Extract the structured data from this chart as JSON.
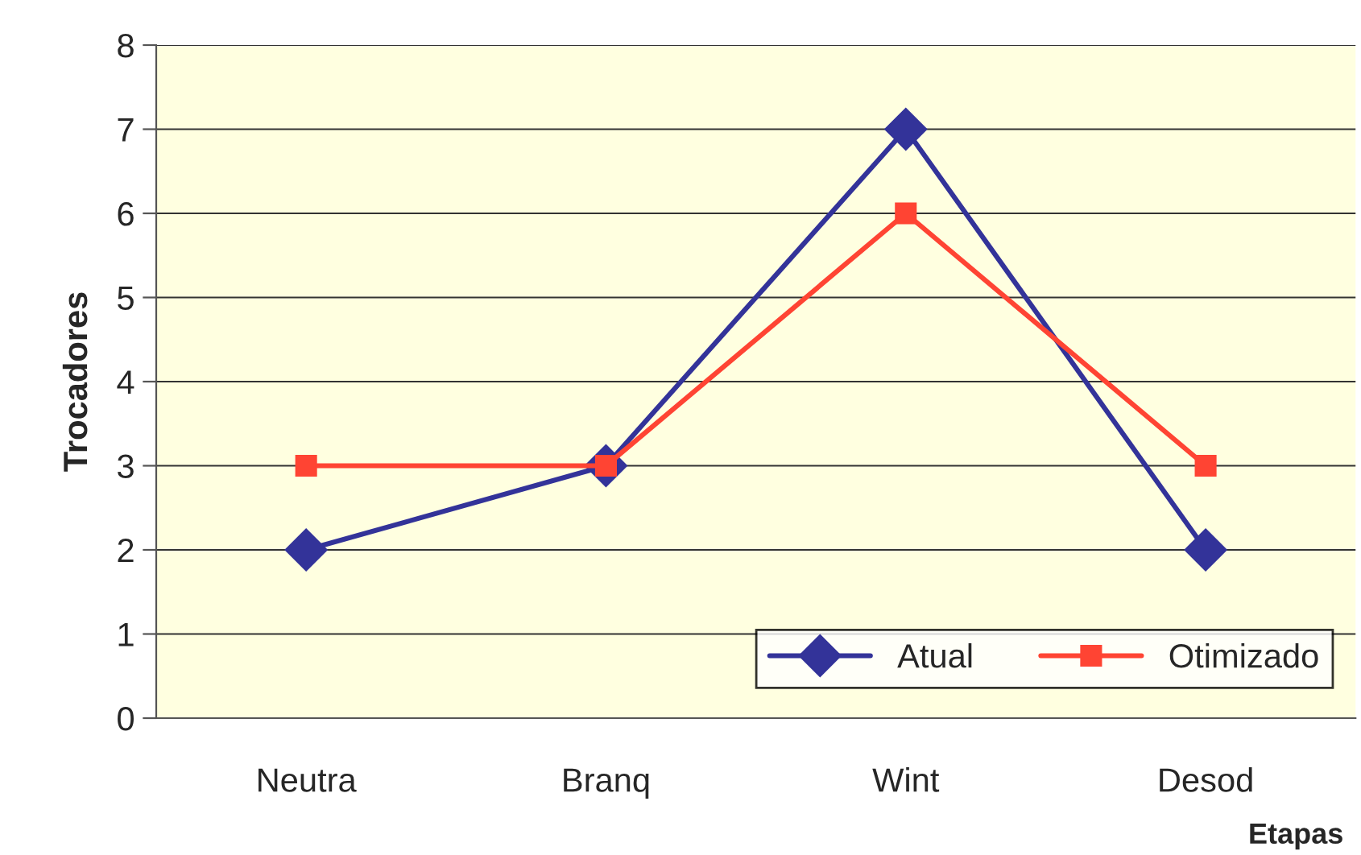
{
  "chart_data": {
    "type": "line",
    "xlabel": "Etapas",
    "ylabel": "Trocadores",
    "categories": [
      "Neutra",
      "Branq",
      "Wint",
      "Desod"
    ],
    "series": [
      {
        "name": "Atual",
        "color": "#333399",
        "marker": "diamond",
        "values": [
          2,
          3,
          7,
          2
        ]
      },
      {
        "name": "Otimizado",
        "color": "#ff4433",
        "marker": "square",
        "values": [
          3,
          3,
          6,
          3
        ]
      }
    ],
    "ylim": [
      0,
      8
    ],
    "yticks": [
      0,
      1,
      2,
      3,
      4,
      5,
      6,
      7,
      8
    ],
    "grid": "y",
    "legend": "bottom right"
  }
}
